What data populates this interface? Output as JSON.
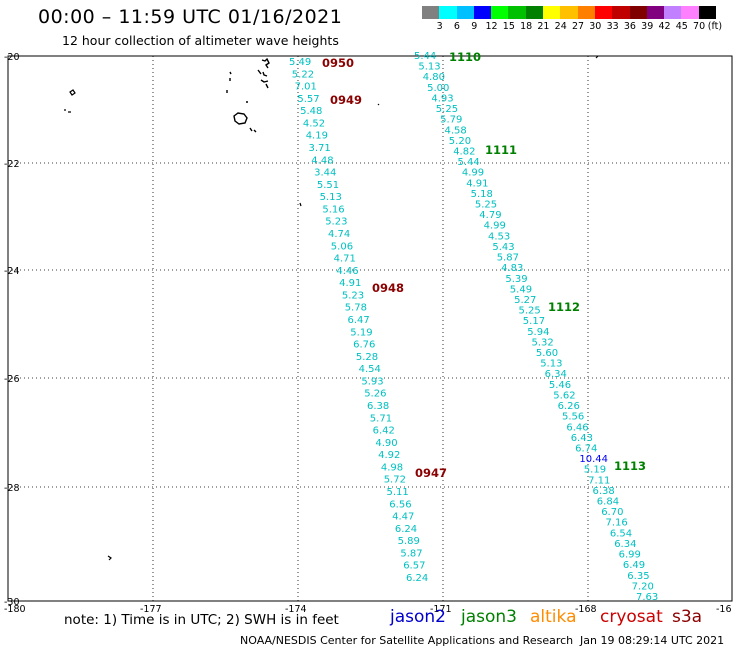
{
  "header": {
    "title": "00:00 – 11:59 UTC 01/16/2021",
    "subtitle": "12 hour collection of altimeter wave heights"
  },
  "colorbar": {
    "labels": [
      "3",
      "6",
      "9",
      "12",
      "15",
      "18",
      "21",
      "24",
      "27",
      "30",
      "33",
      "36",
      "39",
      "42",
      "45",
      "70"
    ],
    "unit": "(ft)",
    "colors": [
      "#808080",
      "#00ffff",
      "#00c0ff",
      "#0000ff",
      "#00ff00",
      "#00c000",
      "#008000",
      "#ffff00",
      "#ffc000",
      "#ff8000",
      "#ff0000",
      "#c00000",
      "#800000",
      "#800080",
      "#c080ff",
      "#ff80ff",
      "#000000"
    ]
  },
  "map": {
    "lat_labels": [
      "-20",
      "-22",
      "-24",
      "-26",
      "-28",
      "-30"
    ],
    "lon_labels": [
      "-180",
      "-177",
      "-174",
      "-171",
      "-168",
      "-16"
    ]
  },
  "tracks": [
    {
      "id": "jason3-t1",
      "color": "#00c0c0",
      "values": [
        "5.44",
        "5.13",
        "4.80",
        "5.00",
        "4.93",
        "5.25",
        "5.79",
        "4.58",
        "5.20",
        "4.82",
        "5.44",
        "4.99",
        "4.91",
        "5.18",
        "5.25",
        "4.79",
        "4.99",
        "4.53",
        "5.43",
        "5.87",
        "4.83",
        "5.39",
        "5.49",
        "5.27",
        "5.25",
        "5.17",
        "5.94",
        "5.32",
        "5.60",
        "5.13",
        "6.34",
        "5.46",
        "5.62",
        "6.26",
        "5.56",
        "6.46",
        "6.43",
        "6.74",
        "10.44",
        "5.19",
        "7.11",
        "6.38",
        "6.84",
        "6.70",
        "7.16",
        "6.54",
        "6.34",
        "6.99",
        "6.49",
        "6.35",
        "7.20",
        "7.63"
      ],
      "value_colors": {
        "38": "#0000ff"
      }
    },
    {
      "id": "jason3-t2",
      "color": "#00c0c0",
      "values": [
        "5.49",
        "5.22",
        "7.01",
        "5.57",
        "5.48",
        "4.52",
        "4.19",
        "3.71",
        "4.48",
        "3.44",
        "5.51",
        "5.13",
        "5.16",
        "5.23",
        "4.74",
        "5.06",
        "4.71",
        "4.46",
        "4.91",
        "5.23",
        "5.78",
        "6.47",
        "5.19",
        "6.76",
        "5.28",
        "4.54",
        "5.93",
        "5.26",
        "6.38",
        "5.71",
        "6.42",
        "4.90",
        "4.92",
        "4.98",
        "5.72",
        "5.11",
        "6.56",
        "4.47",
        "6.24",
        "5.89",
        "5.87",
        "6.57",
        "6.24"
      ],
      "value_colors": {}
    }
  ],
  "time_labels": [
    {
      "text": "0950",
      "color": "#8b0000"
    },
    {
      "text": "0949",
      "color": "#8b0000"
    },
    {
      "text": "0948",
      "color": "#8b0000"
    },
    {
      "text": "0947",
      "color": "#8b0000"
    },
    {
      "text": "1110",
      "color": "#008000"
    },
    {
      "text": "1111",
      "color": "#008000"
    },
    {
      "text": "1112",
      "color": "#008000"
    },
    {
      "text": "1113",
      "color": "#008000"
    }
  ],
  "footer": {
    "note": "note: 1) Time is in UTC; 2) SWH is in feet",
    "satellites": [
      {
        "name": "jason2",
        "color": "#0000cc"
      },
      {
        "name": "jason3",
        "color": "#008000"
      },
      {
        "name": "altika",
        "color": "#ff8c00"
      },
      {
        "name": "cryosat",
        "color": "#cc0000"
      },
      {
        "name": "s3a",
        "color": "#8b0000"
      }
    ],
    "credit": "NOAA/NESDIS Center for Satellite Applications and Research",
    "timestamp": "Jan 19 08:29:14 UTC 2021"
  }
}
